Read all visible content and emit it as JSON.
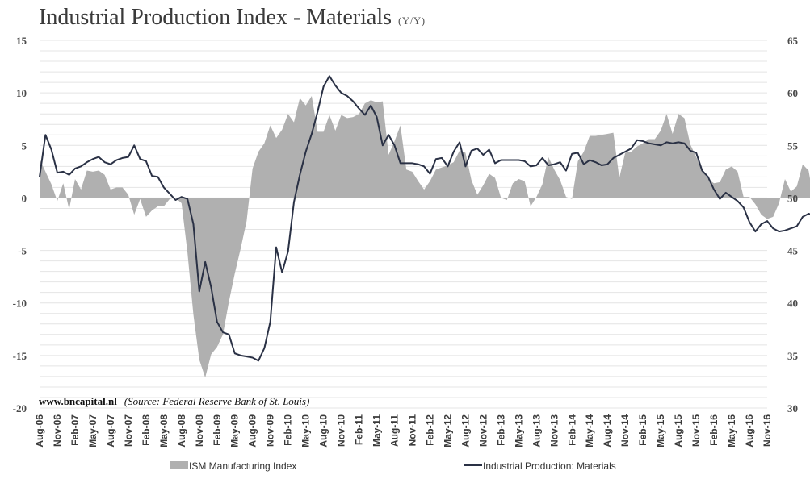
{
  "title": "Industrial Production Index - Materials",
  "subtitle": "(Y/Y)",
  "source_site": "www.bncapital.nl",
  "source_note": "(Source: Federal Reserve Bank of St. Louis)",
  "colors": {
    "area": "#b0b0b0",
    "line": "#2a3145",
    "grid": "#e4e4e4"
  },
  "chart_data": {
    "type": "area+line",
    "x_range": [
      "2006-08",
      "2016-11"
    ],
    "x_tick_labels": [
      "Aug-06",
      "Nov-06",
      "Feb-07",
      "May-07",
      "Aug-07",
      "Nov-07",
      "Feb-08",
      "May-08",
      "Aug-08",
      "Nov-08",
      "Feb-09",
      "May-09",
      "Aug-09",
      "Nov-09",
      "Feb-10",
      "May-10",
      "Aug-10",
      "Nov-10",
      "Feb-11",
      "May-11",
      "Aug-11",
      "Nov-11",
      "Feb-12",
      "May-12",
      "Aug-12",
      "Nov-12",
      "Feb-13",
      "May-13",
      "Aug-13",
      "Nov-13",
      "Feb-14",
      "May-14",
      "Aug-14",
      "Nov-14",
      "Feb-15",
      "May-15",
      "Aug-15",
      "Nov-15",
      "Feb-16",
      "May-16",
      "Aug-16",
      "Nov-16"
    ],
    "y_left": {
      "ylim": [
        -20,
        15
      ],
      "ticks": [
        "15",
        "10",
        "5",
        "0",
        "-5",
        "-10",
        "-15",
        "-20"
      ],
      "values": [
        15,
        10,
        5,
        0,
        -5,
        -10,
        -15,
        -20
      ]
    },
    "y_right": {
      "ylim": [
        30,
        65
      ],
      "ticks": [
        "65",
        "60",
        "55",
        "50",
        "45",
        "40",
        "35",
        "30"
      ],
      "values": [
        65,
        60,
        55,
        50,
        45,
        40,
        35,
        30
      ]
    },
    "grid": true,
    "legend_position": "bottom",
    "series": [
      {
        "name": "ISM Manufacturing Index",
        "kind": "area",
        "axis": "right",
        "start": "2006-08",
        "values": [
          53.7,
          52.5,
          51.3,
          49.7,
          51.4,
          48.9,
          51.8,
          50.8,
          52.6,
          52.5,
          52.6,
          52.2,
          50.8,
          51.0,
          51.0,
          50.3,
          48.4,
          49.9,
          48.2,
          48.8,
          49.2,
          49.2,
          49.9,
          50.0,
          49.5,
          44.8,
          38.9,
          34.6,
          32.9,
          35.1,
          35.8,
          37.0,
          40.1,
          42.8,
          45.2,
          47.8,
          52.8,
          54.4,
          55.2,
          56.9,
          55.7,
          56.5,
          58.0,
          57.2,
          59.5,
          58.8,
          59.7,
          56.3,
          56.3,
          57.9,
          56.4,
          57.9,
          57.6,
          57.7,
          58.0,
          59.0,
          59.3,
          59.1,
          59.2,
          54.1,
          55.4,
          56.9,
          52.7,
          52.5,
          51.6,
          50.8,
          51.6,
          52.7,
          52.9,
          53.1,
          53.4,
          54.5,
          54.3,
          51.7,
          50.3,
          51.2,
          52.3,
          51.9,
          50.0,
          49.8,
          51.4,
          51.8,
          51.6,
          49.2,
          50.1,
          51.3,
          53.9,
          52.7,
          51.7,
          50.1,
          49.9,
          53.5,
          54.4,
          55.9,
          55.9,
          56.0,
          56.1,
          56.2,
          51.9,
          54.3,
          54.4,
          54.9,
          55.2,
          55.6,
          55.6,
          56.4,
          58.0,
          56.1,
          58.0,
          57.6,
          55.1,
          53.9,
          52.6,
          51.8,
          51.4,
          51.5,
          52.7,
          53.0,
          52.5,
          50.1,
          50.1,
          49.4,
          48.4,
          48.0,
          48.2,
          49.5,
          51.8,
          50.6,
          51.1,
          53.2,
          52.6,
          49.4
        ]
      },
      {
        "name": "Industrial Production: Materials",
        "kind": "line",
        "axis": "left",
        "start": "2006-08",
        "values": [
          2.0,
          6.0,
          4.6,
          2.4,
          2.5,
          2.2,
          2.8,
          3.0,
          3.4,
          3.7,
          3.9,
          3.4,
          3.2,
          3.6,
          3.8,
          3.9,
          5.0,
          3.7,
          3.5,
          2.1,
          2.0,
          1.0,
          0.4,
          -0.2,
          0.1,
          -0.1,
          -2.5,
          -8.9,
          -6.1,
          -8.5,
          -11.8,
          -12.8,
          -13.0,
          -14.8,
          -15.0,
          -15.1,
          -15.2,
          -15.5,
          -14.3,
          -11.8,
          -4.7,
          -7.1,
          -5.1,
          -0.4,
          2.2,
          4.4,
          6.1,
          8.2,
          10.6,
          11.6,
          10.7,
          10.0,
          9.7,
          9.2,
          8.5,
          7.9,
          8.8,
          7.7,
          5.0,
          6.0,
          5.0,
          3.3,
          3.3,
          3.3,
          3.2,
          3.0,
          2.3,
          3.7,
          3.8,
          3.0,
          4.4,
          5.3,
          3.0,
          4.5,
          4.7,
          4.1,
          4.6,
          3.3,
          3.6,
          3.6,
          3.6,
          3.6,
          3.5,
          3.0,
          3.1,
          3.8,
          3.1,
          3.2,
          3.4,
          2.6,
          4.2,
          4.3,
          3.2,
          3.6,
          3.4,
          3.1,
          3.2,
          3.8,
          4.1,
          4.4,
          4.7,
          5.5,
          5.4,
          5.2,
          5.1,
          5.0,
          5.3,
          5.2,
          5.3,
          5.2,
          4.5,
          4.3,
          2.6,
          2.0,
          0.8,
          -0.1,
          0.5,
          0.1,
          -0.3,
          -0.9,
          -2.3,
          -3.2,
          -2.5,
          -2.2,
          -2.9,
          -3.2,
          -3.1,
          -2.9,
          -2.7,
          -1.8,
          -1.5,
          -1.7,
          -1.8
        ]
      }
    ]
  }
}
